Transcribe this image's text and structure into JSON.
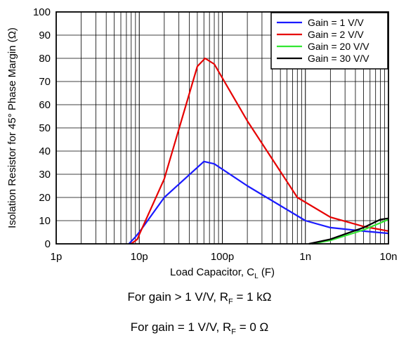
{
  "chart_data": {
    "type": "line",
    "xscale": "log",
    "xlim": [
      1e-12,
      1e-08
    ],
    "ylim": [
      0,
      100
    ],
    "xlabel": "Load Capacitor, C",
    "xlabel_sub": "L",
    "xlabel_unit": " (F)",
    "ylabel": "Isolation Resistor for 45° Phase Margin (Ω)",
    "x_ticks": [
      {
        "value": 1e-12,
        "label": "1p"
      },
      {
        "value": 1e-11,
        "label": "10p"
      },
      {
        "value": 1e-10,
        "label": "100p"
      },
      {
        "value": 1e-09,
        "label": "1n"
      },
      {
        "value": 1e-08,
        "label": "10n"
      }
    ],
    "y_ticks": [
      0,
      10,
      20,
      30,
      40,
      50,
      60,
      70,
      80,
      90,
      100
    ],
    "grid": true,
    "legend_position": "top-right",
    "series": [
      {
        "name": "Gain = 1 V/V",
        "color": "#1a1aff",
        "x": [
          7.5e-12,
          9e-12,
          1e-11,
          2e-11,
          6e-11,
          8e-11,
          2e-10,
          1e-09,
          2e-09,
          5e-09,
          1e-08
        ],
        "y": [
          0,
          3,
          5,
          20,
          35.5,
          34.5,
          25,
          10,
          7,
          5.5,
          4.5
        ]
      },
      {
        "name": "Gain = 2 V/V",
        "color": "#e60000",
        "x": [
          8e-12,
          9.5e-12,
          1e-11,
          2e-11,
          5e-11,
          6.2e-11,
          8e-11,
          2e-10,
          8e-10,
          2e-09,
          5e-09,
          1e-08
        ],
        "y": [
          0,
          2,
          4,
          28,
          76.5,
          80,
          77.5,
          53,
          20,
          11.5,
          7.5,
          5.5
        ]
      },
      {
        "name": "Gain = 20 V/V",
        "color": "#33e633",
        "x": [
          1.2e-09,
          2e-09,
          5e-09,
          1e-08
        ],
        "y": [
          0,
          1.5,
          6,
          10.5
        ]
      },
      {
        "name": "Gain = 30 V/V",
        "color": "#000000",
        "x": [
          1.1e-09,
          2e-09,
          5e-09,
          8e-09,
          1e-08
        ],
        "y": [
          0,
          2,
          7,
          10.5,
          11
        ]
      }
    ]
  },
  "notes": {
    "line1": {
      "pre": "For gain > 1 V/V, R",
      "sub": "F",
      "post": " = 1 kΩ"
    },
    "line2": {
      "pre": "For gain = 1 V/V, R",
      "sub": "F",
      "post": " = 0 Ω"
    }
  }
}
